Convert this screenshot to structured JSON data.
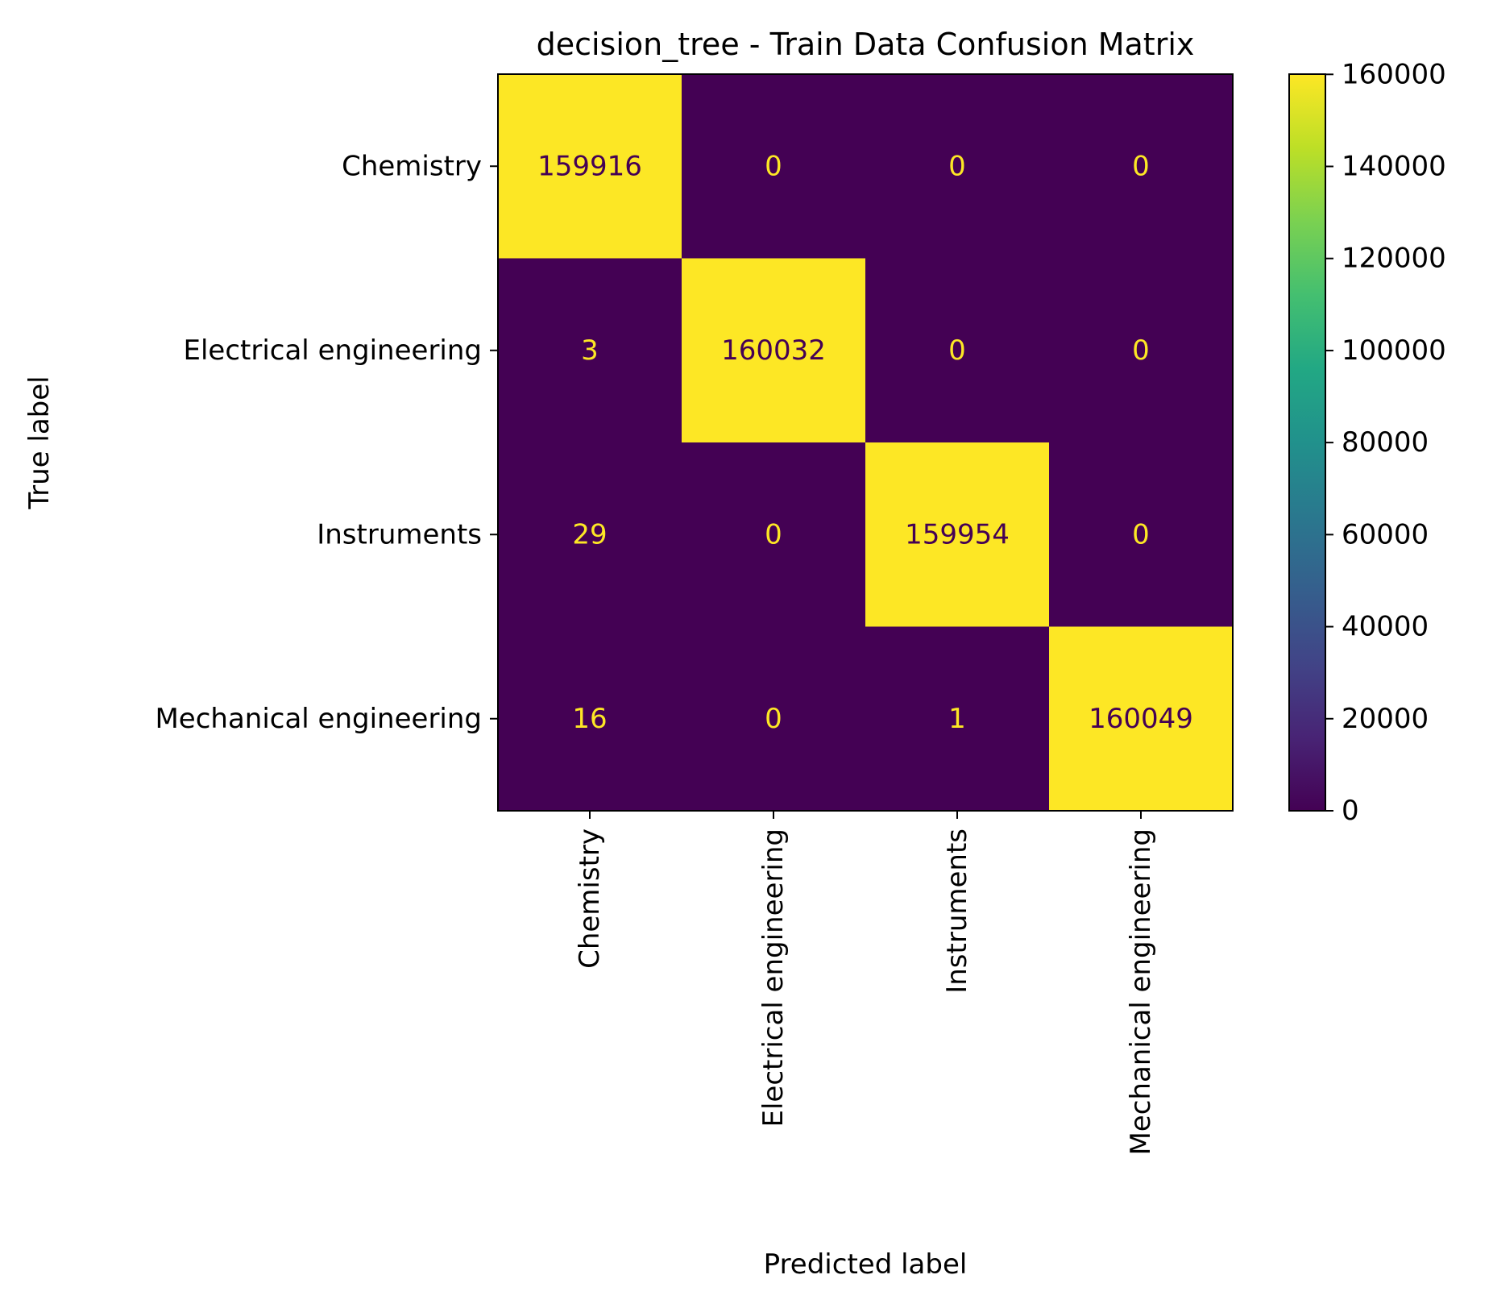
{
  "chart_data": {
    "type": "heatmap",
    "title": "decision_tree - Train Data Confusion Matrix",
    "xlabel": "Predicted label",
    "ylabel": "True label",
    "x_categories": [
      "Chemistry",
      "Electrical engineering",
      "Instruments",
      "Mechanical engineering"
    ],
    "y_categories": [
      "Chemistry",
      "Electrical engineering",
      "Instruments",
      "Mechanical engineering"
    ],
    "matrix": [
      [
        159916,
        0,
        0,
        0
      ],
      [
        3,
        160032,
        0,
        0
      ],
      [
        29,
        0,
        159954,
        0
      ],
      [
        16,
        0,
        1,
        160049
      ]
    ],
    "colormap": "viridis",
    "colorbar": {
      "range": [
        0,
        160049
      ],
      "ticks": [
        0,
        20000,
        40000,
        60000,
        80000,
        100000,
        120000,
        140000,
        160000
      ]
    },
    "colors": {
      "low": "#440154",
      "high": "#fde725",
      "text_on_dark": "#fde725",
      "text_on_light": "#440154"
    }
  }
}
